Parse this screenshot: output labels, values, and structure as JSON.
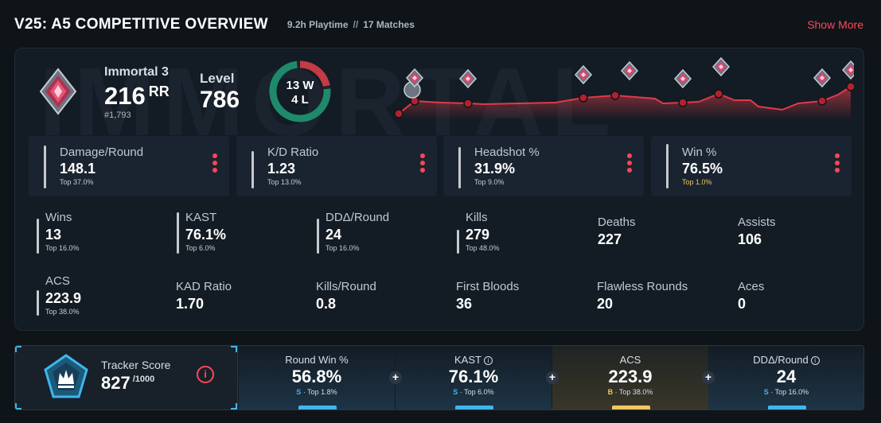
{
  "header": {
    "title": "V25: A5 COMPETITIVE OVERVIEW",
    "playtime": "9.2h Playtime",
    "separator": "//",
    "matches": "17 Matches",
    "show_more": "Show More"
  },
  "rank": {
    "name": "Immortal 3",
    "rr": "216",
    "rr_unit": "RR",
    "position": "#1,793",
    "level_label": "Level",
    "level": "786",
    "icon": "immortal-rank-icon"
  },
  "record": {
    "wins": "13 W",
    "losses": "4 L",
    "wins_count": 13,
    "losses_count": 4
  },
  "colors": {
    "accent": "#ff4655",
    "win": "#1f8a6b",
    "loss": "#c43a45",
    "tier_s": "#3fb6ec",
    "tier_b": "#f0c75e"
  },
  "top_stats": [
    {
      "label": "Damage/Round",
      "value": "148.1",
      "sub": "Top 37.0%",
      "highlight": false
    },
    {
      "label": "K/D Ratio",
      "value": "1.23",
      "sub": "Top 13.0%",
      "highlight": false
    },
    {
      "label": "Headshot %",
      "value": "31.9%",
      "sub": "Top 9.0%",
      "highlight": false
    },
    {
      "label": "Win %",
      "value": "76.5%",
      "sub": "Top 1.0%",
      "highlight": true
    }
  ],
  "grid_stats": [
    {
      "label": "Wins",
      "value": "13",
      "sub": "Top 16.0%"
    },
    {
      "label": "KAST",
      "value": "76.1%",
      "sub": "Top 6.0%"
    },
    {
      "label": "DDΔ/Round",
      "value": "24",
      "sub": "Top 16.0%"
    },
    {
      "label": "Kills",
      "value": "279",
      "sub": "Top 48.0%"
    },
    {
      "label": "Deaths",
      "value": "227",
      "sub": ""
    },
    {
      "label": "Assists",
      "value": "106",
      "sub": ""
    },
    {
      "label": "ACS",
      "value": "223.9",
      "sub": "Top 38.0%"
    },
    {
      "label": "KAD Ratio",
      "value": "1.70",
      "sub": ""
    },
    {
      "label": "Kills/Round",
      "value": "0.8",
      "sub": ""
    },
    {
      "label": "First Bloods",
      "value": "36",
      "sub": ""
    },
    {
      "label": "Flawless Rounds",
      "value": "20",
      "sub": ""
    },
    {
      "label": "Aces",
      "value": "0",
      "sub": ""
    }
  ],
  "tracker": {
    "label": "Tracker Score",
    "score": "827",
    "max": "/1000",
    "info": "i",
    "columns": [
      {
        "label": "Round Win %",
        "value": "56.8%",
        "tier": "S",
        "sub": " · Top 1.8%",
        "style": "blue",
        "info": false
      },
      {
        "label": "KAST",
        "value": "76.1%",
        "tier": "S",
        "sub": " · Top 6.0%",
        "style": "blue",
        "info": true
      },
      {
        "label": "ACS",
        "value": "223.9",
        "tier": "B",
        "sub": " · Top 38.0%",
        "style": "gold",
        "info": false
      },
      {
        "label": "DDΔ/Round",
        "value": "24",
        "tier": "S",
        "sub": " · Top 16.0%",
        "style": "blue",
        "info": true
      }
    ]
  }
}
